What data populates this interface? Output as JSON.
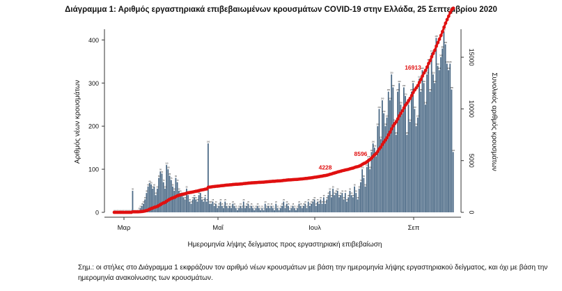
{
  "chart_data": {
    "type": "bar",
    "title": "Διάγραμμα 1: Αριθμός εργαστηριακά επιβεβαιωμένων κρουσμάτων COVID-19 στην Ελλάδα, 25 Σεπτεμβρίου 2020",
    "xlabel": "Ημερομηνία λήψης δείγματος προς εργαστηριακή επιβεβαίωση",
    "ylabel": "Αριθμός νέων κρουσμάτων",
    "y2label": "Συνολικός αριθμός κρουσμάτων",
    "x_ticks": [
      "Μαρ",
      "Μαΐ",
      "Ιουλ",
      "Σεπ"
    ],
    "ylim": [
      0,
      420
    ],
    "y_ticks": [
      0,
      100,
      200,
      300,
      400
    ],
    "y2lim": [
      0,
      17500
    ],
    "y2_ticks": [
      0,
      5000,
      10000,
      15000
    ],
    "bar_color": "#4d6b87",
    "line_color": "#e01010",
    "grid": false,
    "series": [
      {
        "kind": "bar",
        "values": [
          0,
          0,
          0,
          0,
          0,
          0,
          0,
          0,
          0,
          0,
          0,
          0,
          50,
          0,
          0,
          0,
          5,
          10,
          15,
          20,
          30,
          45,
          60,
          68,
          65,
          55,
          60,
          40,
          55,
          80,
          95,
          90,
          70,
          55,
          110,
          100,
          85,
          75,
          60,
          50,
          80,
          70,
          50,
          45,
          40,
          35,
          30,
          55,
          40,
          25,
          20,
          30,
          35,
          30,
          25,
          40,
          45,
          30,
          25,
          35,
          25,
          160,
          20,
          20,
          25,
          15,
          20,
          10,
          15,
          25,
          15,
          10,
          25,
          15,
          10,
          15,
          10,
          20,
          15,
          10,
          5,
          10,
          15,
          10,
          25,
          10,
          15,
          20,
          10,
          15,
          10,
          5,
          10,
          15,
          10,
          5,
          10,
          5,
          20,
          10,
          15,
          10,
          15,
          10,
          5,
          20,
          10,
          5,
          10,
          15,
          25,
          10,
          20,
          15,
          5,
          10,
          15,
          10,
          5,
          10,
          20,
          15,
          10,
          15,
          20,
          10,
          25,
          15,
          20,
          25,
          30,
          15,
          25,
          20,
          30,
          20,
          35,
          20,
          30,
          40,
          50,
          35,
          55,
          40,
          45,
          50,
          35,
          40,
          45,
          30,
          45,
          25,
          35,
          50,
          40,
          35,
          60,
          45,
          30,
          55,
          70,
          100,
          80,
          60,
          105,
          125,
          100,
          140,
          160,
          150,
          130,
          200,
          240,
          170,
          260,
          230,
          200,
          220,
          280,
          260,
          320,
          290,
          210,
          180,
          280,
          300,
          250,
          230,
          290,
          270,
          180,
          250,
          210,
          280,
          300,
          240,
          200,
          220,
          310,
          280,
          330,
          300,
          250,
          320,
          350,
          280,
          370,
          320,
          300,
          405,
          340,
          330,
          360,
          380,
          420,
          390,
          345,
          330,
          345,
          285,
          140
        ],
        "labels": [
          "0",
          "0",
          "0",
          "0",
          "0",
          "0",
          "0",
          "0",
          "0",
          "0",
          "0",
          "0",
          "50",
          "0",
          "0",
          "0",
          "5",
          "10",
          "15",
          "20",
          "30",
          "45",
          "60",
          "68",
          "65",
          "55",
          "60",
          "40",
          "55",
          "80",
          "95",
          "90",
          "70",
          "55",
          "110",
          "100",
          "85",
          "75",
          "60",
          "50",
          "80",
          "70",
          "50",
          "45",
          "40",
          "35",
          "30",
          "55",
          "40",
          "25",
          "20",
          "30",
          "35",
          "30",
          "25",
          "40",
          "45",
          "30",
          "25",
          "35",
          "25",
          "160",
          "20",
          "20",
          "25",
          "15",
          "20",
          "10",
          "15",
          "25",
          "15",
          "10",
          "25",
          "15",
          "10",
          "15",
          "10",
          "20",
          "15",
          "10",
          "5",
          "10",
          "15",
          "10",
          "25",
          "10",
          "15",
          "20",
          "10",
          "15",
          "10",
          "5",
          "10",
          "15",
          "10",
          "5",
          "10",
          "5",
          "20",
          "10",
          "15",
          "10",
          "15",
          "10",
          "5",
          "20",
          "10",
          "5",
          "10",
          "15",
          "25",
          "10",
          "20",
          "15",
          "5",
          "10",
          "15",
          "10",
          "5",
          "10",
          "20",
          "15",
          "10",
          "15",
          "20",
          "10",
          "25",
          "15",
          "20",
          "25",
          "30",
          "15",
          "25",
          "20",
          "30",
          "20",
          "35",
          "20",
          "30",
          "40",
          "50",
          "35",
          "55",
          "40",
          "45",
          "50",
          "35",
          "40",
          "45",
          "30",
          "45",
          "25",
          "35",
          "50",
          "40",
          "35",
          "60",
          "45",
          "30",
          "55",
          "70",
          "100",
          "80",
          "60",
          "105",
          "125",
          "100",
          "140",
          "160",
          "150",
          "130",
          "200",
          "240",
          "170",
          "260",
          "230",
          "200",
          "220",
          "280",
          "260",
          "320",
          "290",
          "210",
          "180",
          "280",
          "300",
          "250",
          "230",
          "290",
          "270",
          "180",
          "250",
          "210",
          "280",
          "300",
          "240",
          "200",
          "220",
          "310",
          "280",
          "330",
          "300",
          "250",
          "320",
          "350",
          "280",
          "370",
          "320",
          "300",
          "405",
          "340",
          "330",
          "360",
          "380",
          "420",
          "390",
          "345",
          "330",
          "345",
          "285",
          "140"
        ]
      },
      {
        "kind": "line",
        "axis": "right",
        "annotated_points": [
          {
            "index": 143,
            "label": "4228"
          },
          {
            "index": 166,
            "label": "8596"
          },
          {
            "index": 201,
            "label": "16913"
          }
        ]
      }
    ]
  },
  "footnote": "Σημ.: οι στήλες στο Διάγραμμα 1 εκφράζουν τον αριθμό νέων κρουσμάτων με βάση την ημερομηνία λήψης εργαστηριακού δείγματος, και όχι με βάση την ημερομηνία ανακοίνωσης των κρουσμάτων."
}
